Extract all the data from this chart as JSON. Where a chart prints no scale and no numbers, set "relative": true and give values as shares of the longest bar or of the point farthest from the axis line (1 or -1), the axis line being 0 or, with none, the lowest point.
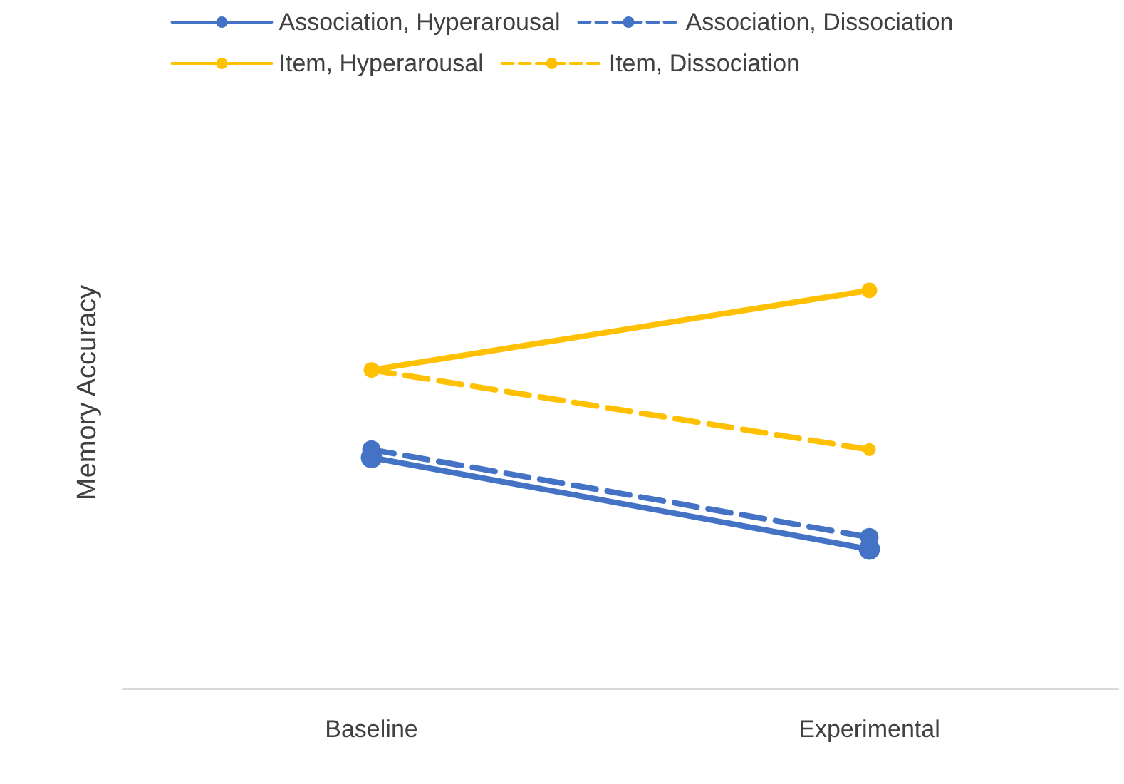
{
  "chart_data": {
    "type": "line",
    "relative": true,
    "ylabel": "Memory Accuracy",
    "categories": [
      "Baseline",
      "Experimental"
    ],
    "legend": "top",
    "marker": "circle",
    "series": [
      {
        "name": "Association, Hyperarousal",
        "color": "#4472c4",
        "line_style": "solid",
        "values": [
          0.58,
          0.35
        ]
      },
      {
        "name": "Association, Dissociation",
        "color": "#4472c4",
        "line_style": "dashed",
        "values": [
          0.6,
          0.38
        ]
      },
      {
        "name": "Item, Hyperarousal",
        "color": "#ffc000",
        "line_style": "solid",
        "values": [
          0.8,
          1
        ]
      },
      {
        "name": "Item, Dissociation",
        "color": "#ffc000",
        "line_style": "dashed",
        "values": [
          0.8,
          0.6
        ]
      }
    ]
  }
}
